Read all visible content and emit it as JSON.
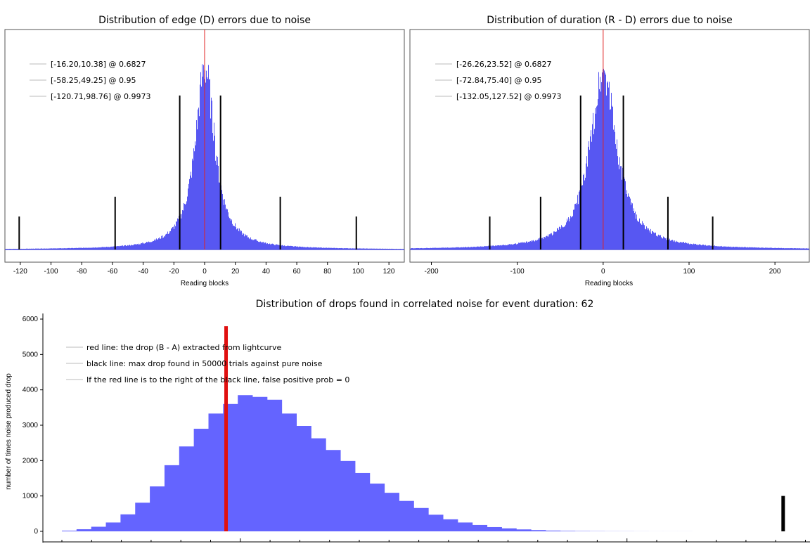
{
  "chart_data": [
    {
      "type": "histogram",
      "title": "Distribution of edge (D) errors due to noise",
      "xlabel": "Reading blocks",
      "xlim": [
        -130,
        130
      ],
      "xticks": [
        -120,
        -100,
        -80,
        -60,
        -40,
        -20,
        0,
        20,
        40,
        60,
        80,
        100,
        120
      ],
      "distribution": {
        "center": 0,
        "peak_fraction": 0.83,
        "scale": 9
      },
      "red_line_x": 0,
      "legend": [
        "[-16.20,10.38] @ 0.6827",
        "[-58.25,49.25] @ 0.95",
        "[-120.71,98.76] @ 0.9973"
      ],
      "intervals": [
        {
          "lo": -16.2,
          "hi": 10.38,
          "level": 0.6827,
          "height_fraction": 0.7
        },
        {
          "lo": -58.25,
          "hi": 49.25,
          "level": 0.95,
          "height_fraction": 0.24
        },
        {
          "lo": -120.71,
          "hi": 98.76,
          "level": 0.9973,
          "height_fraction": 0.15
        }
      ],
      "colors": {
        "bars": "#3a3af0",
        "red_line": "#e02020",
        "interval_lines": "#000000",
        "baseline": "#2b2bd6"
      }
    },
    {
      "type": "histogram",
      "title": "Distribution of duration (R - D) errors due to noise",
      "xlabel": "Reading blocks",
      "xlim": [
        -225,
        240
      ],
      "xticks": [
        -200,
        -100,
        0,
        100,
        200
      ],
      "distribution": {
        "center": 0,
        "peak_fraction": 0.81,
        "scale": 22
      },
      "red_line_x": 0,
      "legend": [
        "[-26.26,23.52] @ 0.6827",
        "[-72.84,75.40] @ 0.95",
        "[-132.05,127.52] @ 0.9973"
      ],
      "intervals": [
        {
          "lo": -26.26,
          "hi": 23.52,
          "level": 0.6827,
          "height_fraction": 0.7
        },
        {
          "lo": -72.84,
          "hi": 75.4,
          "level": 0.95,
          "height_fraction": 0.24
        },
        {
          "lo": -132.05,
          "hi": 127.52,
          "level": 0.9973,
          "height_fraction": 0.15
        }
      ],
      "colors": {
        "bars": "#3a3af0",
        "red_line": "#e02020",
        "interval_lines": "#000000",
        "baseline": "#2b2bd6"
      }
    },
    {
      "type": "bar",
      "title": "Distribution of drops found in correlated noise for event duration: 62",
      "ylabel": "number of times noise produced drop",
      "ylim": [
        -200,
        6000
      ],
      "yticks": [
        0,
        1000,
        2000,
        3000,
        4000,
        5000,
        6000
      ],
      "bin_count": 50,
      "values": [
        20,
        60,
        130,
        250,
        480,
        810,
        1270,
        1870,
        2400,
        2900,
        3330,
        3600,
        3850,
        3800,
        3720,
        3330,
        2980,
        2630,
        2300,
        1990,
        1650,
        1350,
        1090,
        860,
        660,
        470,
        340,
        250,
        180,
        120,
        85,
        55,
        35,
        22,
        14,
        9,
        6,
        4,
        3,
        2,
        1,
        1,
        1,
        0,
        0,
        0,
        0,
        0,
        0,
        0
      ],
      "red_line_bin": 11.2,
      "red_line_top": 5800,
      "black_line_bin": 49.2,
      "black_line_top": 1000,
      "legend": [
        "red line: the drop (B - A) extracted from lightcurve",
        "black line: max drop found in 50000 trials against pure noise",
        "If the red line is to the right of the black line, false positive prob = 0"
      ],
      "colors": {
        "bars": "#6464ff",
        "red_line": "#e01010",
        "black_line": "#000000"
      }
    }
  ]
}
